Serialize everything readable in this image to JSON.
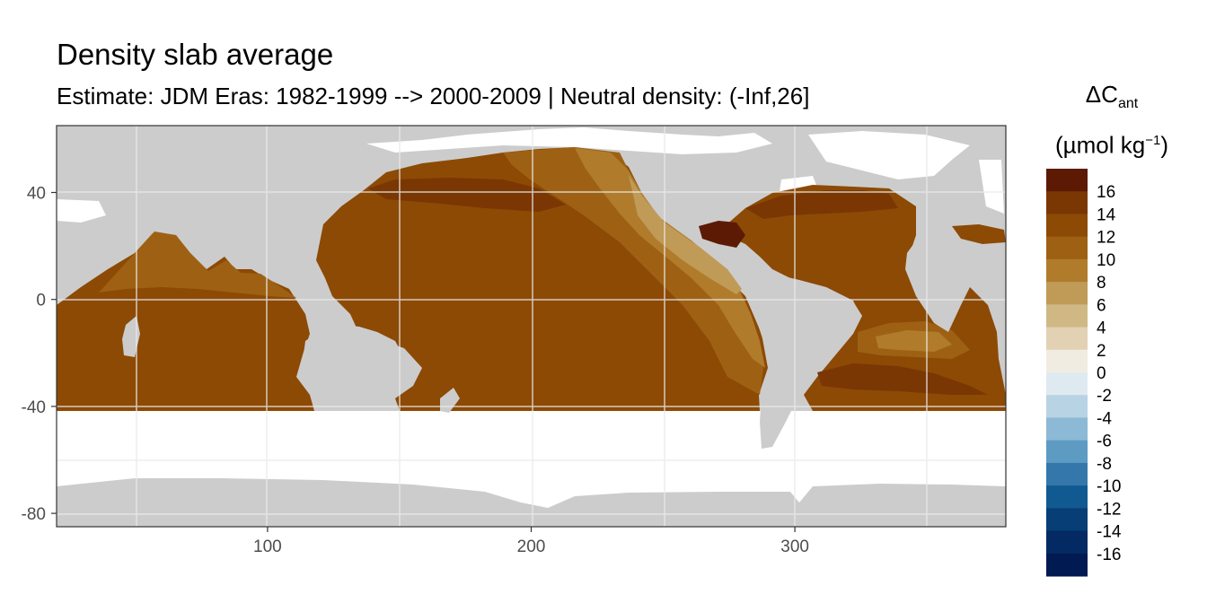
{
  "title": "Density slab average",
  "subtitle": "Estimate: JDM Eras: 1982-1999 --> 2000-2009 | Neutral density: (-Inf,26]",
  "legend": {
    "title_main": "ΔC",
    "title_sub": "ant",
    "unit_prefix": "(µmol kg",
    "unit_sup": "−1",
    "unit_suffix": ")",
    "labels": [
      "16",
      "14",
      "12",
      "10",
      "8",
      "6",
      "4",
      "2",
      "0",
      "-2",
      "-4",
      "-6",
      "-8",
      "-10",
      "-12",
      "-14",
      "-16"
    ],
    "colors": [
      "#5c1a05",
      "#7a3703",
      "#8c4a05",
      "#9e6114",
      "#b07c2c",
      "#c09a57",
      "#d0b885",
      "#e2d2b3",
      "#f1ece2",
      "#dfeaf0",
      "#b8d3e4",
      "#8cb9d5",
      "#5d9bc3",
      "#3478ab",
      "#115a91",
      "#063e75",
      "#032a62",
      "#021a52"
    ]
  },
  "axes": {
    "x_ticks": [
      100,
      200,
      300
    ],
    "y_ticks": [
      40,
      0,
      -40,
      -80
    ],
    "x_range": [
      20,
      380
    ],
    "y_range": [
      -85,
      65
    ]
  },
  "map_colors": {
    "land": "#cccccc",
    "ocean_no_data": "#ffffff",
    "high": "#5c1a05",
    "mid_high": "#7a3703",
    "main": "#8c4a05",
    "moderate": "#9e6114",
    "lighter": "#b07c2c",
    "light": "#c09a57",
    "pale": "#d0b885"
  }
}
